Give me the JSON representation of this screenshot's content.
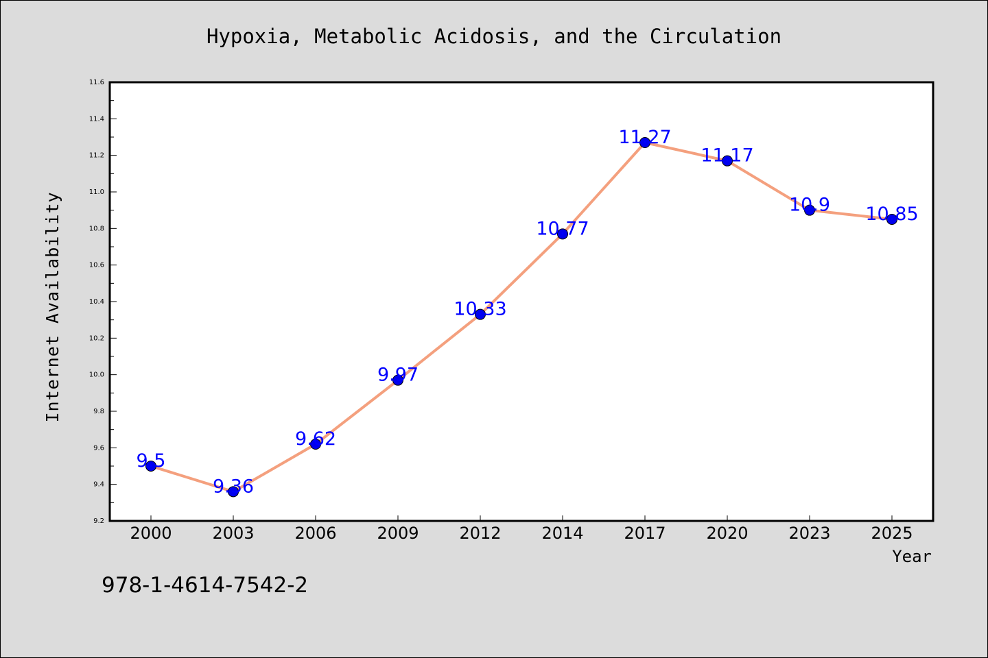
{
  "chart_data": {
    "type": "line",
    "title": "Hypoxia, Metabolic Acidosis, and the Circulation",
    "xlabel": "Year",
    "ylabel": "Internet Availability",
    "categories": [
      "2000",
      "2003",
      "2006",
      "2009",
      "2012",
      "2014",
      "2017",
      "2020",
      "2023",
      "2025"
    ],
    "values": [
      9.5,
      9.36,
      9.62,
      9.97,
      10.33,
      10.77,
      11.27,
      11.17,
      10.9,
      10.85
    ],
    "data_labels": [
      "9.5",
      "9.36",
      "9.62",
      "9.97",
      "10.33",
      "10.77",
      "11.27",
      "11.17",
      "10.9",
      "10.85"
    ],
    "yticks": [
      "9.2",
      "9.4",
      "9.6",
      "9.8",
      "10.0",
      "10.2",
      "10.4",
      "10.6",
      "10.8",
      "11.0",
      "11.2",
      "11.4",
      "11.6"
    ],
    "ylim": [
      9.2,
      11.6
    ],
    "grid": false,
    "legend": "none",
    "line_color": "#f4a07e",
    "marker_color": "#0000ee",
    "label_color": "#0000ff"
  },
  "footer_text": "978-1-4614-7542-2"
}
